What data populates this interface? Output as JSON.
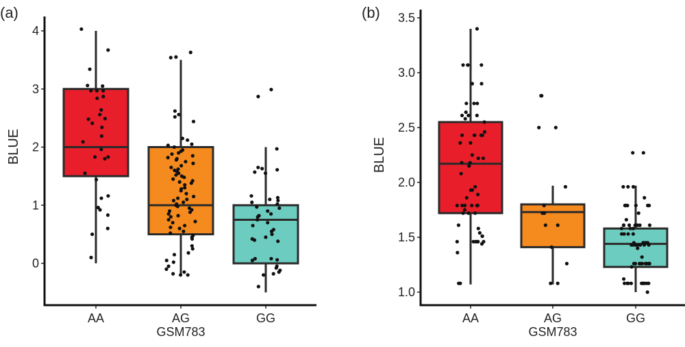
{
  "chart_data": [
    {
      "panel_label": "(a)",
      "type": "box",
      "ylabel": "BLUE",
      "xlabel": "GSM783",
      "ylim": [
        -0.7,
        4.2
      ],
      "yticks": [
        "0",
        "1",
        "2",
        "3",
        "4"
      ],
      "ytick_values": [
        0,
        1,
        2,
        3,
        4
      ],
      "categories": [
        "AA",
        "AG",
        "GG"
      ],
      "colors": [
        "#E81F2A",
        "#F58B1F",
        "#6CCCBF"
      ],
      "boxes": [
        {
          "category": "AA",
          "whisker_low": 0,
          "q1": 1.5,
          "median": 2,
          "q3": 3,
          "whisker_high": 4
        },
        {
          "category": "AG",
          "whisker_low": -0.2,
          "q1": 0.5,
          "median": 1,
          "q3": 2,
          "whisker_high": 3.5
        },
        {
          "category": "GG",
          "whisker_low": -0.5,
          "q1": 0,
          "median": 0.75,
          "q3": 1,
          "whisker_high": 2
        }
      ],
      "points": [
        [
          4.03,
          3.67,
          3.34,
          3.06,
          3.05,
          2.97,
          2.97,
          2.97,
          2.87,
          2.84,
          2.64,
          2.56,
          2.49,
          2.48,
          2.41,
          2.34,
          2.19,
          2.09,
          1.96,
          1.83,
          1.83,
          1.8,
          1.55,
          1.44,
          1.16,
          1.12,
          0.92,
          0.96,
          0.83,
          0.6,
          0.5,
          0.1
        ],
        [
          3.63,
          3.55,
          3.54,
          2.62,
          2.56,
          2.52,
          2.44,
          2.15,
          2.12,
          2.05,
          2.03,
          2.0,
          1.95,
          1.93,
          1.9,
          1.88,
          1.85,
          1.82,
          1.8,
          1.78,
          1.75,
          1.72,
          1.68,
          1.65,
          1.62,
          1.6,
          1.58,
          1.55,
          1.52,
          1.5,
          1.48,
          1.45,
          1.42,
          1.4,
          1.38,
          1.35,
          1.3,
          1.28,
          1.25,
          1.2,
          1.15,
          1.12,
          1.1,
          1.08,
          1.05,
          1.02,
          1.0,
          0.98,
          0.95,
          0.92,
          0.9,
          0.88,
          0.85,
          0.82,
          0.8,
          0.75,
          0.72,
          0.7,
          0.65,
          0.62,
          0.6,
          0.55,
          0.52,
          0.48,
          0.45,
          0.42,
          0.3,
          0.25,
          0.18,
          0.15,
          0.05,
          0.02,
          -0.05,
          -0.1,
          -0.15,
          -0.18,
          -0.2,
          -0.2
        ],
        [
          2.99,
          2.87,
          1.97,
          1.65,
          1.63,
          1.61,
          1.57,
          1.55,
          1.16,
          1.13,
          1.1,
          1.08,
          1.05,
          1.02,
          0.97,
          0.95,
          0.9,
          0.85,
          0.82,
          0.8,
          0.75,
          0.7,
          0.65,
          0.58,
          0.55,
          0.5,
          0.45,
          0.42,
          0.4,
          0.38,
          0.08,
          0.08,
          0.06,
          0.05,
          -0.05,
          -0.08,
          -0.12,
          -0.15,
          -0.18,
          -0.2,
          -0.4
        ]
      ]
    },
    {
      "panel_label": "(b)",
      "type": "box",
      "ylabel": "BLUE",
      "xlabel": "GSM783",
      "ylim": [
        0.9,
        3.55
      ],
      "yticks": [
        "1.0",
        "1.5",
        "2.0",
        "2.5",
        "3.0",
        "3.5"
      ],
      "ytick_values": [
        1.0,
        1.5,
        2.0,
        2.5,
        3.0,
        3.5
      ],
      "categories": [
        "AA",
        "AG",
        "GG"
      ],
      "colors": [
        "#E81F2A",
        "#F58B1F",
        "#6CCCBF"
      ],
      "boxes": [
        {
          "category": "AA",
          "whisker_low": 1.07,
          "q1": 1.72,
          "median": 2.17,
          "q3": 2.55,
          "whisker_high": 3.4
        },
        {
          "category": "AG",
          "whisker_low": 1.07,
          "q1": 1.41,
          "median": 1.73,
          "q3": 1.8,
          "whisker_high": 1.97
        },
        {
          "category": "GG",
          "whisker_low": 1.0,
          "q1": 1.23,
          "median": 1.44,
          "q3": 1.58,
          "whisker_high": 1.97
        }
      ],
      "points": [
        [
          3.4,
          3.07,
          3.07,
          3.07,
          3.07,
          2.9,
          2.9,
          2.72,
          2.72,
          2.72,
          2.64,
          2.61,
          2.61,
          2.61,
          2.58,
          2.55,
          2.46,
          2.43,
          2.43,
          2.43,
          2.43,
          2.43,
          2.36,
          2.36,
          2.25,
          2.22,
          2.22,
          2.18,
          2.18,
          2.15,
          2.08,
          1.96,
          1.93,
          1.93,
          1.93,
          1.89,
          1.86,
          1.79,
          1.79,
          1.79,
          1.79,
          1.79,
          1.79,
          1.75,
          1.72,
          1.72,
          1.72,
          1.61,
          1.58,
          1.54,
          1.51,
          1.51,
          1.46,
          1.46,
          1.46,
          1.46,
          1.46,
          1.46,
          1.44,
          1.36,
          1.08,
          1.08
        ],
        [
          2.79,
          2.79,
          2.5,
          2.5,
          1.96,
          1.79,
          1.72,
          1.72,
          1.61,
          1.61,
          1.41,
          1.26,
          1.08,
          1.08
        ],
        [
          2.27,
          2.27,
          1.96,
          1.96,
          1.96,
          1.86,
          1.79,
          1.79,
          1.79,
          1.79,
          1.79,
          1.79,
          1.72,
          1.66,
          1.61,
          1.61,
          1.61,
          1.61,
          1.61,
          1.61,
          1.61,
          1.58,
          1.58,
          1.58,
          1.53,
          1.53,
          1.53,
          1.53,
          1.45,
          1.45,
          1.45,
          1.45,
          1.45,
          1.43,
          1.43,
          1.43,
          1.43,
          1.43,
          1.43,
          1.43,
          1.43,
          1.4,
          1.32,
          1.26,
          1.26,
          1.26,
          1.26,
          1.26,
          1.26,
          1.26,
          1.26,
          1.26,
          1.26,
          1.23,
          1.12,
          1.08,
          1.08,
          1.08,
          1.08,
          1.08,
          1.08,
          1.08,
          1.08,
          1.08,
          1.08,
          1.0
        ]
      ]
    }
  ]
}
